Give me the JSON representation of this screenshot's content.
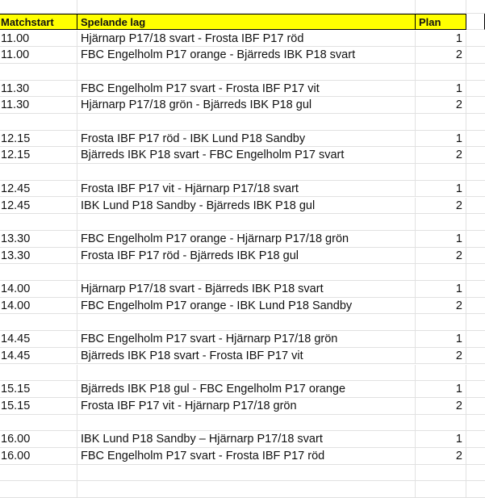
{
  "header": {
    "col_a": "Matchstart",
    "col_b": "Spelande lag",
    "col_c": "Plan"
  },
  "header_color": "#ffff00",
  "rows": [
    {
      "time": "11.00",
      "match": "Hjärnarp P17/18 svart - Frosta IBF P17 röd",
      "plan": "1"
    },
    {
      "time": "11.00",
      "match": "FBC Engelholm P17 orange - Bjärreds IBK P18 svart",
      "plan": "2"
    },
    {},
    {
      "time": "11.30",
      "match": "FBC Engelholm P17 svart - Frosta IBF P17 vit",
      "plan": "1"
    },
    {
      "time": "11.30",
      "match": "Hjärnarp P17/18 grön - Bjärreds IBK P18 gul",
      "plan": "2"
    },
    {},
    {
      "time": "12.15",
      "match": "Frosta IBF P17 röd - IBK Lund P18 Sandby",
      "plan": "1"
    },
    {
      "time": "12.15",
      "match": "Bjärreds IBK P18 svart - FBC Engelholm P17 svart",
      "plan": "2"
    },
    {},
    {
      "time": "12.45",
      "match": "Frosta IBF P17 vit - Hjärnarp P17/18 svart",
      "plan": "1"
    },
    {
      "time": "12.45",
      "match": "IBK Lund P18 Sandby - Bjärreds IBK P18 gul",
      "plan": "2"
    },
    {},
    {
      "time": "13.30",
      "match": "FBC Engelholm P17 orange - Hjärnarp P17/18 grön",
      "plan": "1"
    },
    {
      "time": "13.30",
      "match": "Frosta IBF P17 röd - Bjärreds IBK P18 gul",
      "plan": "2"
    },
    {},
    {
      "time": "14.00",
      "match": "Hjärnarp P17/18 svart - Bjärreds IBK P18 svart",
      "plan": "1"
    },
    {
      "time": "14.00",
      "match": "FBC Engelholm P17 orange - IBK Lund P18 Sandby",
      "plan": "2"
    },
    {},
    {
      "time": "14.45",
      "match": "FBC Engelholm P17 svart - Hjärnarp P17/18 grön",
      "plan": "1"
    },
    {
      "time": "14.45",
      "match": "Bjärreds IBK P18 svart - Frosta IBF P17 vit",
      "plan": "2"
    },
    {},
    {
      "time": "15.15",
      "match": "Bjärreds IBK P18 gul - FBC Engelholm P17 orange",
      "plan": "1"
    },
    {
      "time": "15.15",
      "match": "Frosta IBF P17 vit - Hjärnarp P17/18 grön",
      "plan": "2"
    },
    {},
    {
      "time": "16.00",
      "match": "IBK Lund P18 Sandby – Hjärnarp P17/18 svart",
      "plan": "1"
    },
    {
      "time": "16.00",
      "match": "FBC Engelholm P17 svart - Frosta IBF P17 röd",
      "plan": "2"
    },
    {},
    {}
  ]
}
